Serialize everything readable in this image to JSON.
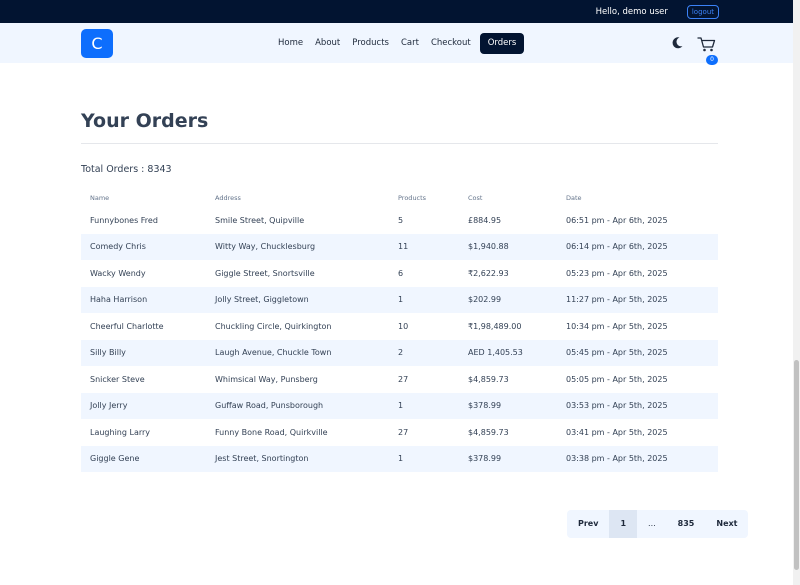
{
  "user_bar": {
    "greeting": "Hello, demo user",
    "logout_label": "logout"
  },
  "brand": {
    "logo_letter": "C",
    "color": "#0d6efd"
  },
  "nav": {
    "items": [
      {
        "label": "Home"
      },
      {
        "label": "About"
      },
      {
        "label": "Products"
      },
      {
        "label": "Cart"
      },
      {
        "label": "Checkout"
      },
      {
        "label": "Orders",
        "active": true
      }
    ],
    "theme_icon": "moon-icon",
    "cart_icon": "cart-icon",
    "cart_count": "0"
  },
  "page": {
    "title": "Your Orders",
    "total_label": "Total Orders : 8343"
  },
  "table": {
    "headers": [
      "Name",
      "Address",
      "Products",
      "Cost",
      "Date"
    ],
    "rows": [
      [
        "Funnybones Fred",
        "Smile Street, Quipville",
        "5",
        "£884.95",
        "06:51 pm - Apr 6th, 2025"
      ],
      [
        "Comedy Chris",
        "Witty Way, Chucklesburg",
        "11",
        "$1,940.88",
        "06:14 pm - Apr 6th, 2025"
      ],
      [
        "Wacky Wendy",
        "Giggle Street, Snortsville",
        "6",
        "₹2,622.93",
        "05:23 pm - Apr 6th, 2025"
      ],
      [
        "Haha Harrison",
        "Jolly Street, Giggletown",
        "1",
        "$202.99",
        "11:27 pm - Apr 5th, 2025"
      ],
      [
        "Cheerful Charlotte",
        "Chuckling Circle, Quirkington",
        "10",
        "₹1,98,489.00",
        "10:34 pm - Apr 5th, 2025"
      ],
      [
        "Silly Billy",
        "Laugh Avenue, Chuckle Town",
        "2",
        "AED 1,405.53",
        "05:45 pm - Apr 5th, 2025"
      ],
      [
        "Snicker Steve",
        "Whimsical Way, Punsberg",
        "27",
        "$4,859.73",
        "05:05 pm - Apr 5th, 2025"
      ],
      [
        "Jolly Jerry",
        "Guffaw Road, Punsborough",
        "1",
        "$378.99",
        "03:53 pm - Apr 5th, 2025"
      ],
      [
        "Laughing Larry",
        "Funny Bone Road, Quirkville",
        "27",
        "$4,859.73",
        "03:41 pm - Apr 5th, 2025"
      ],
      [
        "Giggle Gene",
        "Jest Street, Snortington",
        "1",
        "$378.99",
        "03:38 pm - Apr 5th, 2025"
      ]
    ]
  },
  "pagination": {
    "prev": "Prev",
    "current": "1",
    "ellipsis": "...",
    "last": "835",
    "next": "Next"
  },
  "colors": {
    "topbar": "#021431",
    "navbar": "#f0f6ff",
    "stripe": "#f0f6ff",
    "accent": "#0d6efd"
  }
}
